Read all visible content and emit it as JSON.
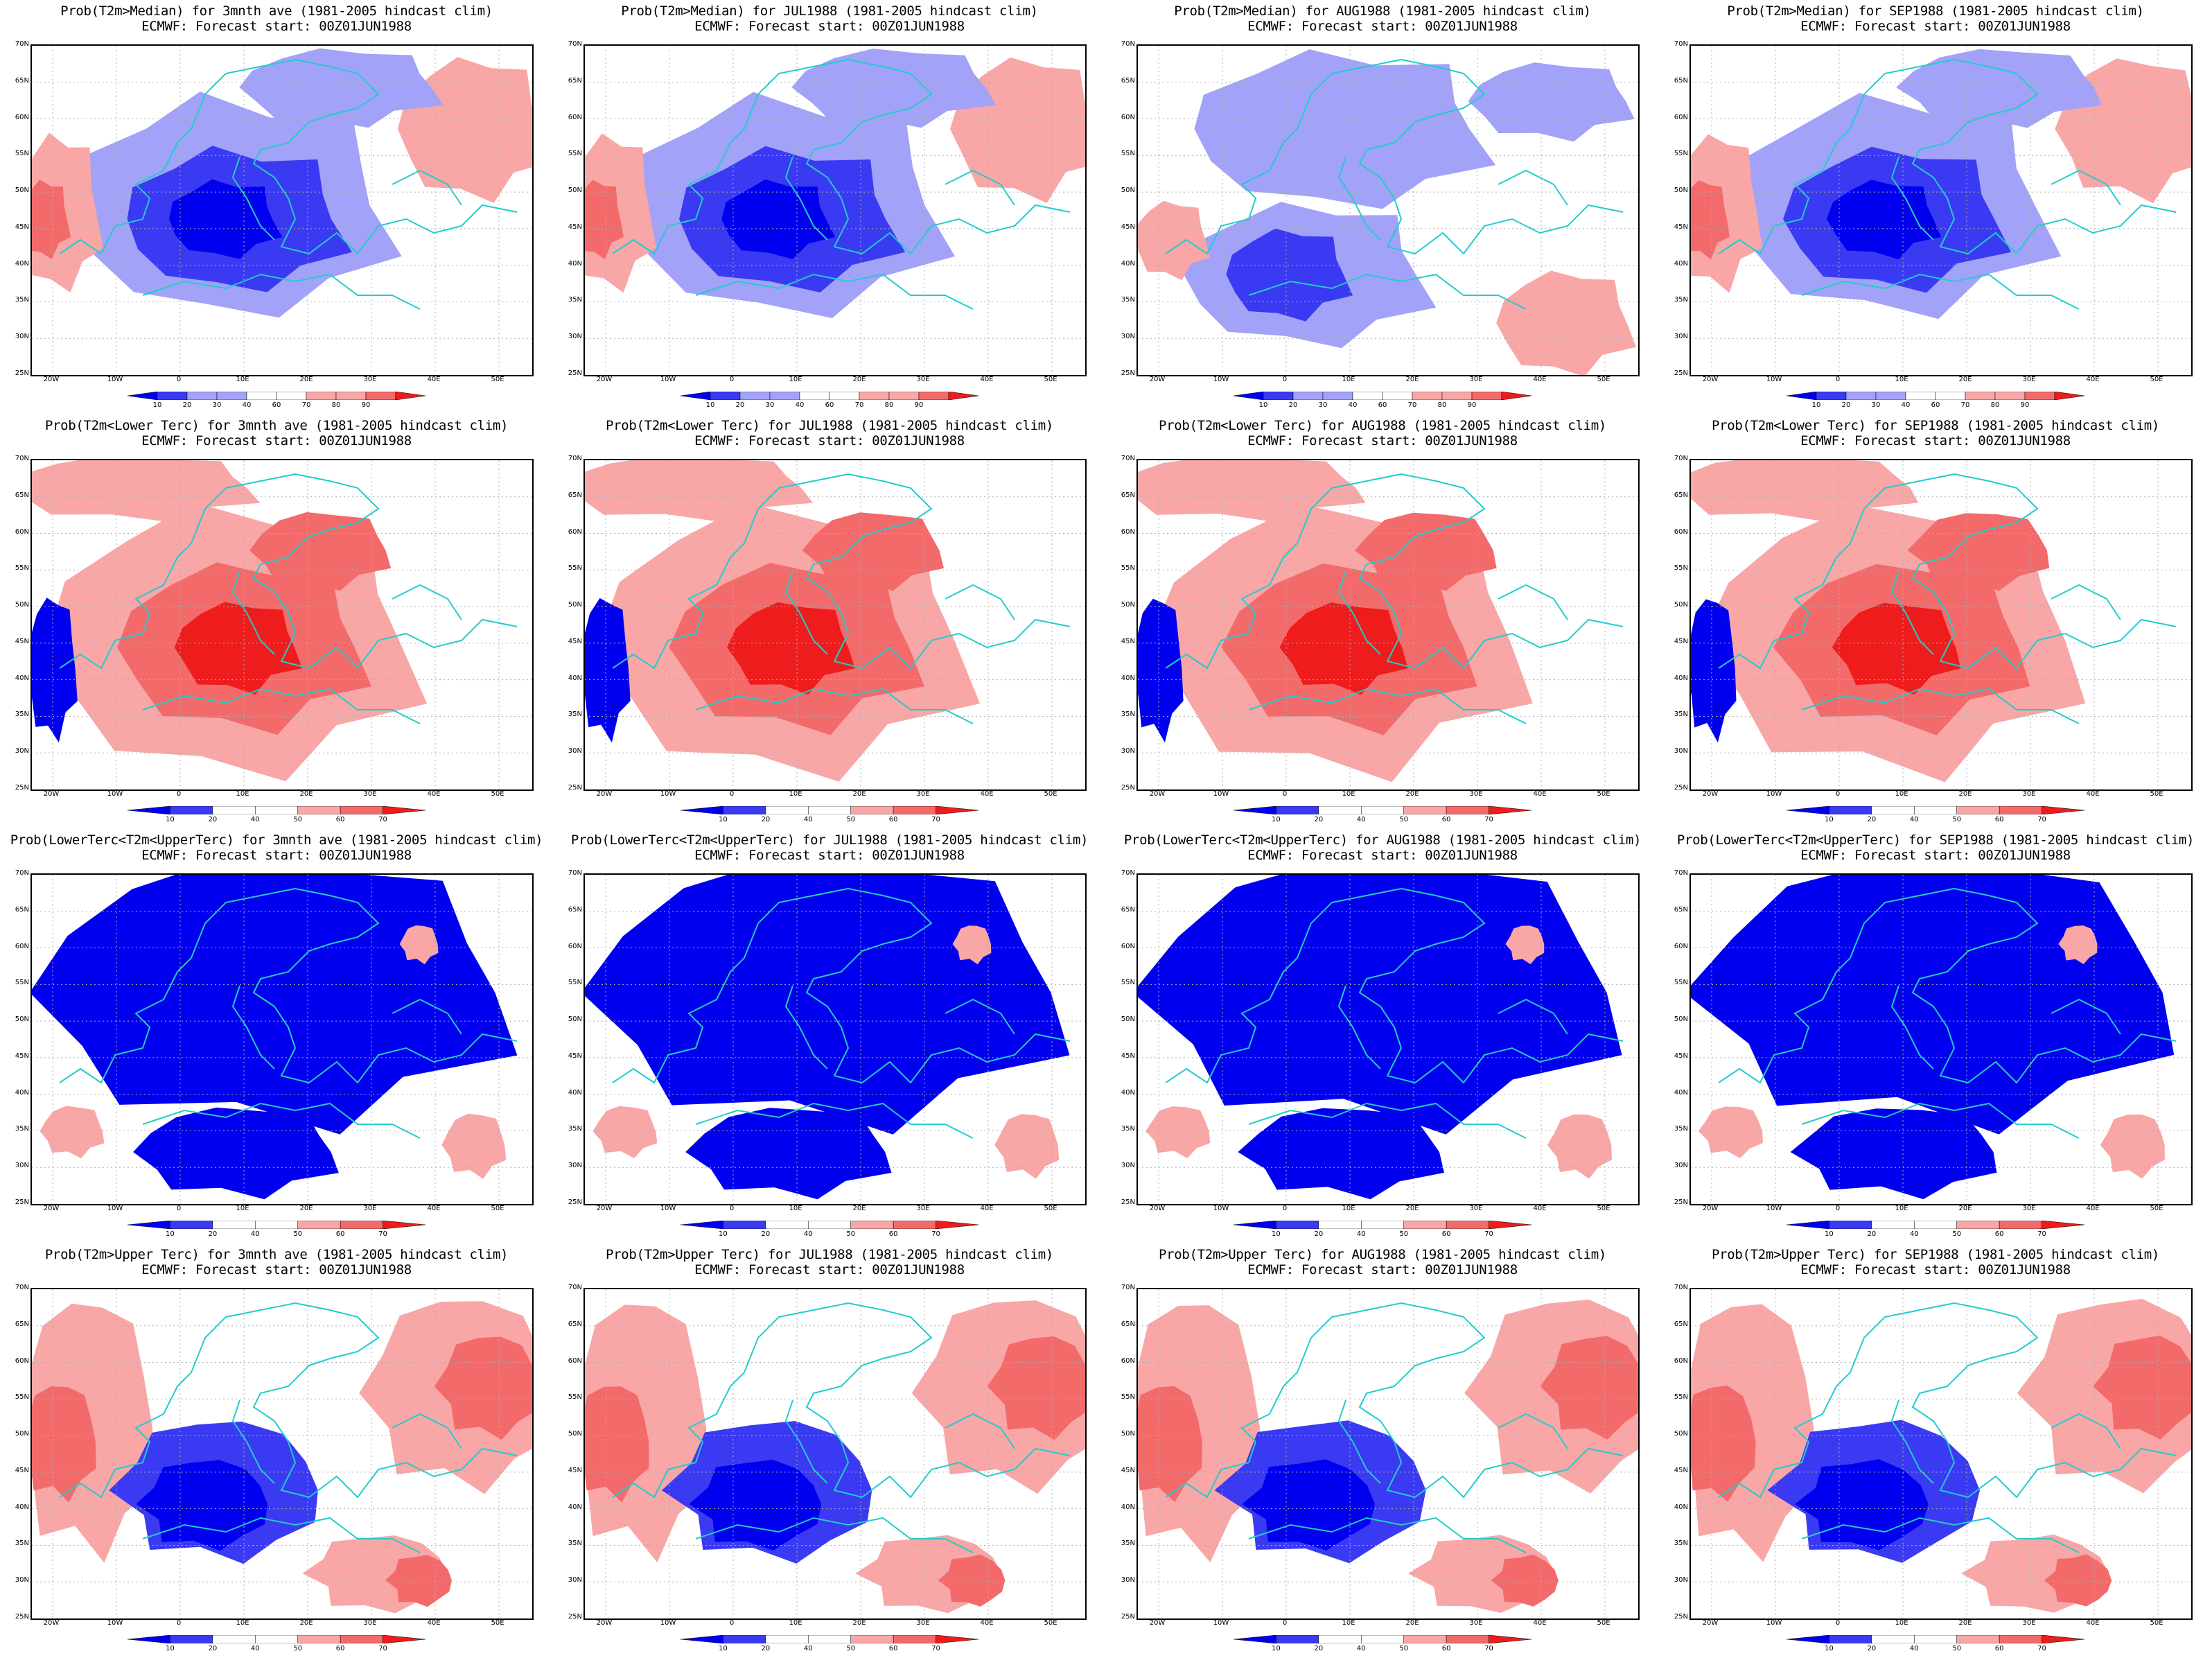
{
  "colors": {
    "blue_dark": "#0000ee",
    "blue_mid": "#3a3af2",
    "blue_light": "#a2a2f8",
    "red_light": "#f8a6a6",
    "red_mid": "#f36a6a",
    "red_dark": "#ee1c1c",
    "coast": "#22cccc",
    "grid": "#b0b0b0"
  },
  "lat_ticks": [
    "70N",
    "65N",
    "60N",
    "55N",
    "50N",
    "45N",
    "40N",
    "35N",
    "30N",
    "25N"
  ],
  "lon_ticks": [
    "20W",
    "10W",
    "0",
    "10E",
    "20E",
    "30E",
    "40E",
    "50E"
  ],
  "colorbar_median": [
    "10",
    "20",
    "30",
    "40",
    "60",
    "70",
    "80",
    "90"
  ],
  "colorbar_tercile": [
    "10",
    "20",
    "40",
    "50",
    "60",
    "70"
  ],
  "panels": [
    {
      "line1": "Prob(T2m>Median) for 3mnth ave (1981-2005 hindcast clim)",
      "line2": "ECMWF: Forecast start: 00Z01JUN1988",
      "kind": "median",
      "theme": "cold-center"
    },
    {
      "line1": "Prob(T2m>Median) for JUL1988 (1981-2005 hindcast clim)",
      "line2": "ECMWF: Forecast start: 00Z01JUN1988",
      "kind": "median",
      "theme": "cold-center"
    },
    {
      "line1": "Prob(T2m>Median) for AUG1988 (1981-2005 hindcast clim)",
      "line2": "ECMWF: Forecast start: 00Z01JUN1988",
      "kind": "median",
      "theme": "mixed"
    },
    {
      "line1": "Prob(T2m>Median) for SEP1988 (1981-2005 hindcast clim)",
      "line2": "ECMWF: Forecast start: 00Z01JUN1988",
      "kind": "median",
      "theme": "cold-center"
    },
    {
      "line1": "Prob(T2m<Lower Terc) for 3mnth ave (1981-2005 hindcast clim)",
      "line2": "ECMWF: Forecast start: 00Z01JUN1988",
      "kind": "tercile",
      "theme": "warm-center"
    },
    {
      "line1": "Prob(T2m<Lower Terc) for JUL1988 (1981-2005 hindcast clim)",
      "line2": "ECMWF: Forecast start: 00Z01JUN1988",
      "kind": "tercile",
      "theme": "warm-center"
    },
    {
      "line1": "Prob(T2m<Lower Terc) for AUG1988 (1981-2005 hindcast clim)",
      "line2": "ECMWF: Forecast start: 00Z01JUN1988",
      "kind": "tercile",
      "theme": "warm-center"
    },
    {
      "line1": "Prob(T2m<Lower Terc) for SEP1988 (1981-2005 hindcast clim)",
      "line2": "ECMWF: Forecast start: 00Z01JUN1988",
      "kind": "tercile",
      "theme": "warm-center"
    },
    {
      "line1": "Prob(LowerTerc<T2m<UpperTerc) for 3mnth ave (1981-2005 hindcast clim)",
      "line2": "ECMWF: Forecast start: 00Z01JUN1988",
      "kind": "tercile",
      "theme": "blue-north"
    },
    {
      "line1": "Prob(LowerTerc<T2m<UpperTerc) for JUL1988 (1981-2005 hindcast clim)",
      "line2": "ECMWF: Forecast start: 00Z01JUN1988",
      "kind": "tercile",
      "theme": "blue-north"
    },
    {
      "line1": "Prob(LowerTerc<T2m<UpperTerc) for AUG1988 (1981-2005 hindcast clim)",
      "line2": "ECMWF: Forecast start: 00Z01JUN1988",
      "kind": "tercile",
      "theme": "blue-north"
    },
    {
      "line1": "Prob(LowerTerc<T2m<UpperTerc) for SEP1988 (1981-2005 hindcast clim)",
      "line2": "ECMWF: Forecast start: 00Z01JUN1988",
      "kind": "tercile",
      "theme": "blue-north"
    },
    {
      "line1": "Prob(T2m>Upper Terc) for 3mnth ave (1981-2005 hindcast clim)",
      "line2": "ECMWF: Forecast start: 00Z01JUN1988",
      "kind": "tercile",
      "theme": "upper"
    },
    {
      "line1": "Prob(T2m>Upper Terc) for JUL1988 (1981-2005 hindcast clim)",
      "line2": "ECMWF: Forecast start: 00Z01JUN1988",
      "kind": "tercile",
      "theme": "upper"
    },
    {
      "line1": "Prob(T2m>Upper Terc) for AUG1988 (1981-2005 hindcast clim)",
      "line2": "ECMWF: Forecast start: 00Z01JUN1988",
      "kind": "tercile",
      "theme": "upper"
    },
    {
      "line1": "Prob(T2m>Upper Terc) for SEP1988 (1981-2005 hindcast clim)",
      "line2": "ECMWF: Forecast start: 00Z01JUN1988",
      "kind": "tercile",
      "theme": "upper"
    }
  ]
}
